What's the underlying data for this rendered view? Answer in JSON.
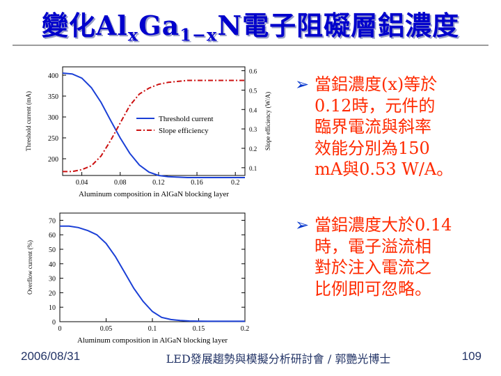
{
  "slide": {
    "title_main": "變化Al",
    "title_sub1": "x",
    "title_mid": "Ga",
    "title_sub2": "1−x",
    "title_end": "N電子阻礙層鋁濃度",
    "footer_date": "2006/08/31",
    "footer_center": "LED發展趨勢與模擬分析研討會 / 郭艷光博士",
    "footer_page": "109"
  },
  "bullets": [
    {
      "lines": [
        "當鋁濃度(x)等於",
        "0.12時，元件的",
        "臨界電流與斜率",
        "效能分別為150",
        "mA與0.53 W/A。"
      ]
    },
    {
      "lines": [
        "當鋁濃度大於0.14",
        "時，電子溢流相",
        "對於注入電流之",
        "比例即可忽略。"
      ]
    }
  ],
  "colors": {
    "title": "#0000cc",
    "bullet_text": "#ff2a00",
    "arrow": "#0033cc",
    "blue_line": "#1a3fd6",
    "red_line": "#cc1111"
  },
  "chart_data": [
    {
      "type": "line",
      "xlabel": "Aluminum composition in AlGaN blocking layer",
      "ylabel_left": "Threshold current (mA)",
      "ylabel_right": "Slope efficiency (W/A)",
      "xlim": [
        0.02,
        0.21
      ],
      "ylim_left": [
        160,
        420
      ],
      "ylim_right": [
        0.06,
        0.62
      ],
      "x_ticks": [
        0.04,
        0.08,
        0.12,
        0.16,
        0.2
      ],
      "x_tick_labels": [
        "0.04",
        "0.08",
        "0.12",
        "0.16",
        "0.2"
      ],
      "y_ticks_left": [
        200,
        250,
        300,
        350,
        400
      ],
      "y_tick_labels_left": [
        "200",
        "250",
        "300",
        "350",
        "400"
      ],
      "y_ticks_right": [
        0.1,
        0.2,
        0.3,
        0.4,
        0.5,
        0.6
      ],
      "y_tick_labels_right": [
        "0.1",
        "0.2",
        "0.3",
        "0.4",
        "0.5",
        "0.6"
      ],
      "legend": [
        "Threshold current",
        "Slope efficiency"
      ],
      "series": [
        {
          "name": "Threshold current",
          "axis": "left",
          "style": "solid",
          "x": [
            0.02,
            0.03,
            0.04,
            0.05,
            0.06,
            0.07,
            0.08,
            0.09,
            0.1,
            0.11,
            0.12,
            0.13,
            0.14,
            0.15,
            0.16,
            0.17,
            0.18,
            0.19,
            0.2,
            0.21
          ],
          "y": [
            405,
            403,
            393,
            370,
            335,
            292,
            250,
            213,
            185,
            168,
            160,
            157,
            156,
            155,
            155,
            155,
            155,
            155,
            155,
            155
          ]
        },
        {
          "name": "Slope efficiency",
          "axis": "right",
          "style": "dashed",
          "x": [
            0.02,
            0.03,
            0.04,
            0.05,
            0.06,
            0.07,
            0.08,
            0.09,
            0.1,
            0.11,
            0.12,
            0.13,
            0.14,
            0.15,
            0.16,
            0.17,
            0.18,
            0.19,
            0.2,
            0.21
          ],
          "y": [
            0.08,
            0.08,
            0.09,
            0.11,
            0.16,
            0.24,
            0.33,
            0.42,
            0.48,
            0.51,
            0.53,
            0.54,
            0.545,
            0.55,
            0.55,
            0.55,
            0.55,
            0.55,
            0.55,
            0.55
          ]
        }
      ]
    },
    {
      "type": "line",
      "xlabel": "Aluminum composition in AlGaN blocking layer",
      "ylabel": "Overflow current (%)",
      "xlim": [
        0.0,
        0.2
      ],
      "ylim": [
        0,
        75
      ],
      "x_ticks": [
        0.0,
        0.05,
        0.1,
        0.15,
        0.2
      ],
      "x_tick_labels": [
        "0",
        "0.05",
        "0.1",
        "0.15",
        "0.2"
      ],
      "y_ticks": [
        0,
        10,
        20,
        30,
        40,
        50,
        60,
        70
      ],
      "y_tick_labels": [
        "0",
        "10",
        "20",
        "30",
        "40",
        "50",
        "60",
        "70"
      ],
      "series": [
        {
          "name": "Overflow",
          "style": "solid",
          "x": [
            0.0,
            0.01,
            0.02,
            0.03,
            0.04,
            0.05,
            0.06,
            0.07,
            0.08,
            0.09,
            0.1,
            0.11,
            0.12,
            0.13,
            0.14,
            0.15,
            0.16,
            0.17,
            0.18,
            0.19,
            0.2
          ],
          "y": [
            66,
            66,
            65,
            63,
            60,
            54,
            45,
            34,
            23,
            14,
            7,
            3,
            1.5,
            0.8,
            0.5,
            0.4,
            0.3,
            0.3,
            0.3,
            0.3,
            0.3
          ]
        }
      ]
    }
  ]
}
